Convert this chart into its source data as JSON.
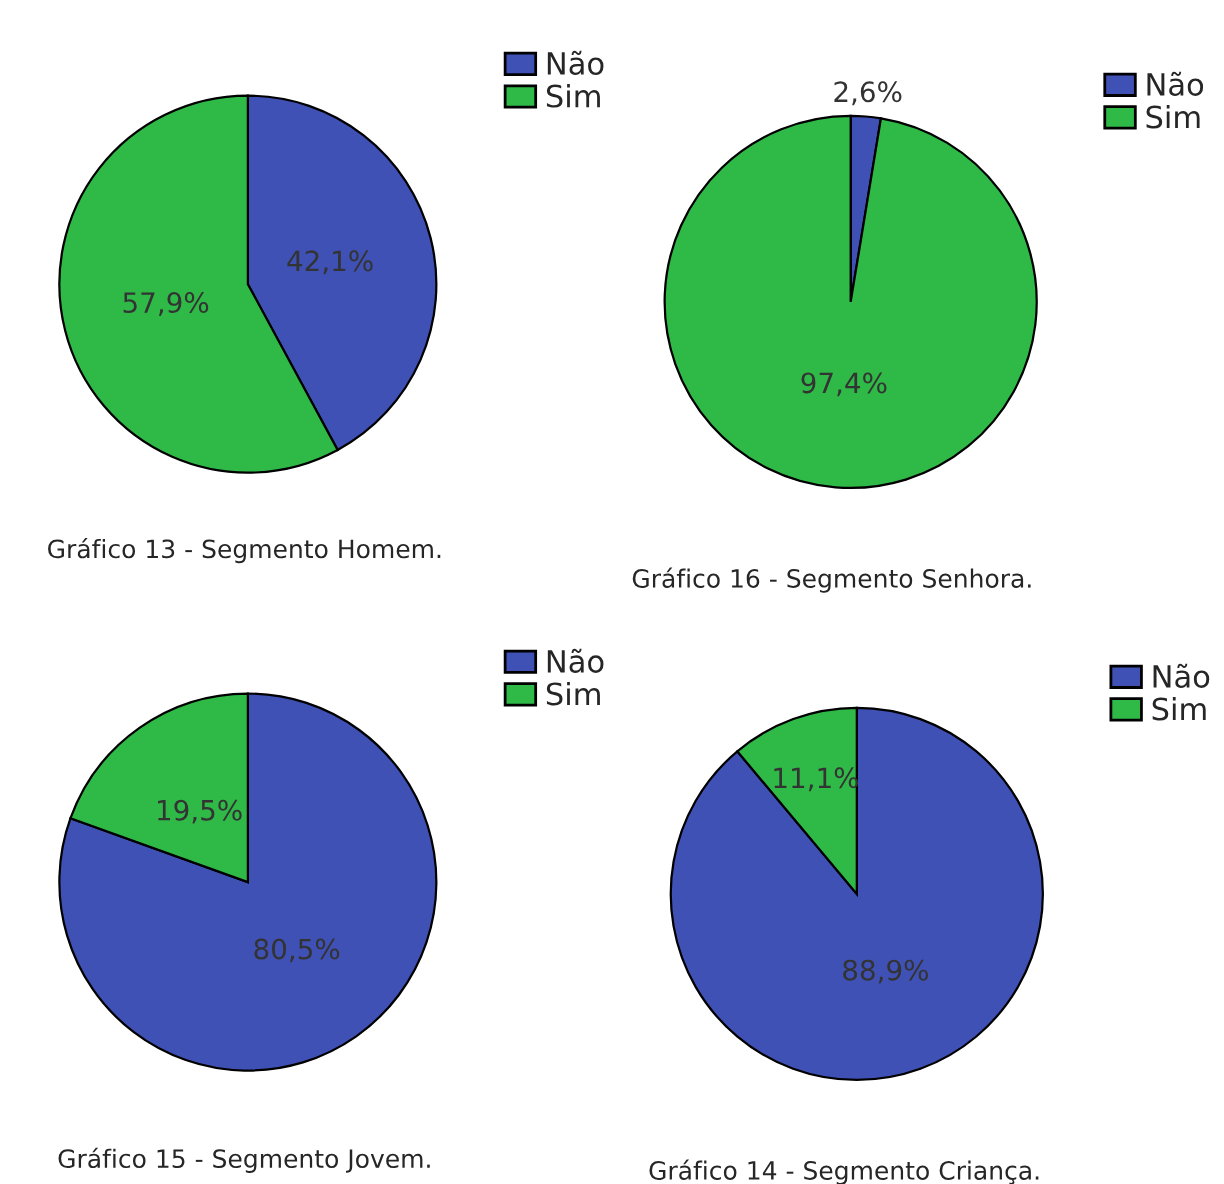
{
  "chart_data": [
    {
      "type": "pie",
      "categories": [
        "Não",
        "Sim"
      ],
      "values": [
        42.1,
        57.9
      ],
      "colors": [
        "#3f51b5",
        "#2fba48"
      ],
      "value_labels": [
        "42,1%",
        "57,9%"
      ],
      "legend": "top right",
      "annotations": [
        "Gráfico 13 - Segmento Homem."
      ]
    },
    {
      "type": "pie",
      "categories": [
        "Não",
        "Sim"
      ],
      "values": [
        2.6,
        97.4
      ],
      "colors": [
        "#3f51b5",
        "#2fba48"
      ],
      "value_labels": [
        "2,6%",
        "97,4%"
      ],
      "legend": "top right",
      "annotations": [
        "Gráfico 16 - Segmento Senhora."
      ]
    },
    {
      "type": "pie",
      "categories": [
        "Não",
        "Sim"
      ],
      "values": [
        80.5,
        19.5
      ],
      "colors": [
        "#3f51b5",
        "#2fba48"
      ],
      "value_labels": [
        "80,5%",
        "19,5%"
      ],
      "legend": "top right",
      "annotations": [
        "Gráfico 15 - Segmento Jovem."
      ]
    },
    {
      "type": "pie",
      "categories": [
        "Não",
        "Sim"
      ],
      "values": [
        88.9,
        11.1
      ],
      "colors": [
        "#3f51b5",
        "#2fba48"
      ],
      "value_labels": [
        "88,9%",
        "11,1%"
      ],
      "legend": "top right",
      "annotations": [
        "Gráfico 14 - Segmento Criança."
      ]
    }
  ]
}
